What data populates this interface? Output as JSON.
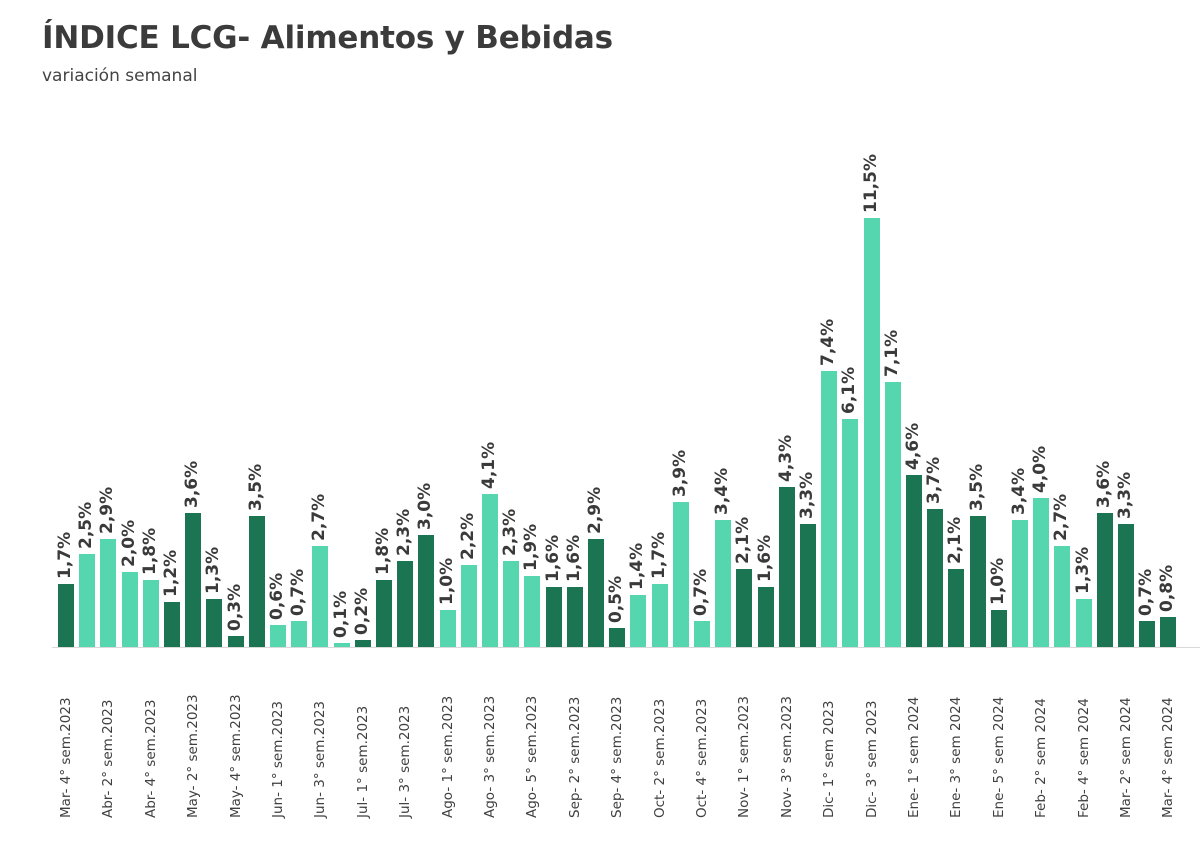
{
  "header": {
    "title": "ÍNDICE LCG- Alimentos y Bebidas",
    "subtitle": "variación semanal"
  },
  "colors": {
    "dark": "#1B7452",
    "light": "#55D6AE"
  },
  "chart_data": {
    "type": "bar",
    "title": "ÍNDICE LCG- Alimentos y Bebidas",
    "subtitle": "variación semanal",
    "xlabel": "",
    "ylabel": "",
    "ylim": [
      0,
      12
    ],
    "grid": false,
    "legend": null,
    "value_unit": "%",
    "tick_labels_shown_every": 2,
    "x_tick_labels": [
      "Mar- 4° sem.2023",
      "Abr- 2° sem.2023",
      "Abr- 4° sem.2023",
      "May- 2° sem.2023",
      "May- 4° sem.2023",
      "Jun- 1° sem.2023",
      "Jun- 3° sem.2023",
      "Jul- 1° sem.2023",
      "Jul- 3° sem.2023",
      "Ago- 1° sem.2023",
      "Ago- 3° sem.2023",
      "Ago- 5° sem.2023",
      "Sep- 2° sem.2023",
      "Sep- 4° sem.2023",
      "Oct- 2° sem.2023",
      "Oct- 4° sem.2023",
      "Nov- 1° sem.2023",
      "Nov- 3° sem.2023",
      "Dic- 1° sem 2023",
      "Dic- 3° sem 2023",
      "Ene- 1° sem 2024",
      "Ene- 3° sem 2024",
      "Ene- 5° sem 2024",
      "Feb- 2° sem 2024",
      "Feb- 4° sem 2024",
      "Mar- 2° sem 2024",
      "Mar- 4° sem 2024"
    ],
    "values": [
      1.7,
      2.5,
      2.9,
      2.0,
      1.8,
      1.2,
      3.6,
      1.3,
      0.3,
      3.5,
      0.6,
      0.7,
      2.7,
      0.1,
      0.2,
      1.8,
      2.3,
      3.0,
      1.0,
      2.2,
      4.1,
      2.3,
      1.9,
      1.6,
      1.6,
      2.9,
      0.5,
      1.4,
      1.7,
      3.9,
      0.7,
      3.4,
      2.1,
      1.6,
      4.3,
      3.3,
      7.4,
      6.1,
      11.5,
      7.1,
      4.6,
      3.7,
      2.1,
      3.5,
      1.0,
      3.4,
      4.0,
      2.7,
      1.3,
      3.6,
      3.3,
      0.7,
      0.8
    ],
    "labels": [
      "1,7%",
      "2,5%",
      "2,9%",
      "2,0%",
      "1,8%",
      "1,2%",
      "3,6%",
      "1,3%",
      "0,3%",
      "3,5%",
      "0,6%",
      "0,7%",
      "2,7%",
      "0,1%",
      "0,2%",
      "1,8%",
      "2,3%",
      "3,0%",
      "1,0%",
      "2,2%",
      "4,1%",
      "2,3%",
      "1,9%",
      "1,6%",
      "1,6%",
      "2,9%",
      "0,5%",
      "1,4%",
      "1,7%",
      "3,9%",
      "0,7%",
      "3,4%",
      "2,1%",
      "1,6%",
      "4,3%",
      "3,3%",
      "7,4%",
      "6,1%",
      "11,5%",
      "7,1%",
      "4,6%",
      "3,7%",
      "2,1%",
      "3,5%",
      "1,0%",
      "3,4%",
      "4,0%",
      "2,7%",
      "1,3%",
      "3,6%",
      "3,3%",
      "0,7%",
      "0,8%"
    ],
    "bar_shade": [
      "D",
      "L",
      "L",
      "L",
      "L",
      "D",
      "D",
      "D",
      "D",
      "D",
      "L",
      "L",
      "L",
      "L",
      "D",
      "D",
      "D",
      "D",
      "L",
      "L",
      "L",
      "L",
      "L",
      "D",
      "D",
      "D",
      "D",
      "L",
      "L",
      "L",
      "L",
      "L",
      "D",
      "D",
      "D",
      "D",
      "L",
      "L",
      "L",
      "L",
      "D",
      "D",
      "D",
      "D",
      "D",
      "L",
      "L",
      "L",
      "L",
      "D",
      "D",
      "D",
      "D"
    ]
  }
}
